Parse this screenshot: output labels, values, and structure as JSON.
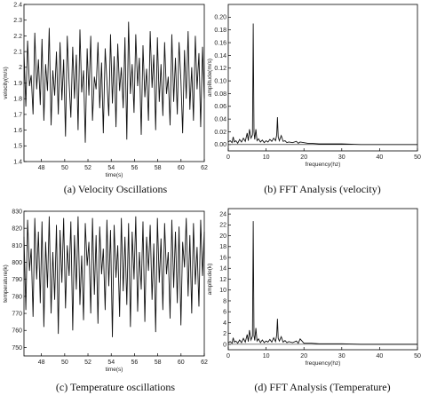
{
  "chart_data": [
    {
      "type": "line",
      "panel": "a",
      "caption": "(a) Velocity Oscillations",
      "xlabel": "time(s)",
      "ylabel": "velocity(m/s)",
      "xlim": [
        46.5,
        62
      ],
      "ylim": [
        1.4,
        2.4
      ],
      "xticks": [
        48,
        50,
        52,
        54,
        56,
        58,
        60,
        62
      ],
      "yticks": [
        1.4,
        1.5,
        1.6,
        1.7,
        1.8,
        1.9,
        2.0,
        2.1,
        2.2,
        2.3,
        2.4
      ],
      "ytick_labels": [
        "1.4",
        "1.5",
        "1.6",
        "1.7",
        "1.8",
        "1.9",
        "2",
        "2.1",
        "2.2",
        "2.3",
        "2.4"
      ],
      "grid": false,
      "series": [
        {
          "x": [
            46.5,
            46.66,
            46.81,
            46.97,
            47.12,
            47.28,
            47.43,
            47.59,
            47.74,
            47.9,
            48.05,
            48.21,
            48.36,
            48.52,
            48.67,
            48.83,
            48.98,
            49.14,
            49.29,
            49.45,
            49.6,
            49.76,
            49.91,
            50.07,
            50.22,
            50.38,
            50.53,
            50.69,
            50.84,
            51.0,
            51.15,
            51.31,
            51.46,
            51.62,
            51.77,
            51.93,
            52.08,
            52.24,
            52.39,
            52.55,
            52.7,
            52.86,
            53.01,
            53.17,
            53.32,
            53.48,
            53.63,
            53.79,
            53.94,
            54.1,
            54.25,
            54.41,
            54.56,
            54.72,
            54.87,
            55.03,
            55.18,
            55.34,
            55.49,
            55.65,
            55.8,
            55.96,
            56.11,
            56.27,
            56.42,
            56.58,
            56.73,
            56.89,
            57.04,
            57.2,
            57.35,
            57.51,
            57.66,
            57.82,
            57.97,
            58.13,
            58.28,
            58.44,
            58.59,
            58.75,
            58.9,
            59.06,
            59.21,
            59.37,
            59.52,
            59.68,
            59.83,
            59.99,
            60.14,
            60.3,
            60.45,
            60.61,
            60.76,
            60.92,
            61.07,
            61.23,
            61.38,
            61.54,
            61.69,
            61.85,
            62.0
          ],
          "y": [
            2.1,
            1.75,
            2.17,
            1.88,
            1.95,
            1.7,
            2.22,
            1.86,
            2.05,
            1.76,
            2.18,
            1.66,
            2.02,
            1.85,
            2.25,
            1.63,
            1.98,
            1.82,
            2.1,
            1.7,
            2.16,
            1.79,
            2.05,
            1.56,
            2.2,
            1.9,
            1.68,
            2.13,
            1.8,
            2.08,
            1.6,
            2.24,
            1.84,
            1.98,
            1.52,
            2.12,
            1.82,
            2.2,
            1.66,
            1.94,
            1.86,
            2.16,
            1.74,
            2.03,
            1.58,
            2.12,
            1.91,
            1.69,
            2.21,
            1.77,
            2.07,
            1.62,
            2.15,
            1.85,
            2.0,
            1.74,
            2.19,
            1.54,
            2.29,
            1.83,
            2.02,
            1.71,
            2.21,
            1.88,
            2.06,
            1.57,
            2.14,
            1.81,
            1.99,
            1.66,
            2.23,
            1.87,
            2.08,
            1.6,
            2.19,
            1.78,
            2.02,
            1.69,
            2.16,
            1.83,
            1.94,
            1.63,
            2.21,
            1.78,
            2.06,
            1.7,
            2.16,
            1.92,
            1.58,
            2.11,
            1.8,
            2.23,
            1.73,
            2.0,
            1.66,
            2.2,
            1.86,
            2.09,
            1.62,
            2.13,
            1.8
          ]
        }
      ]
    },
    {
      "type": "line",
      "panel": "b",
      "caption": "(b) FFT Analysis (velocity)",
      "xlabel": "frequency(hz)",
      "ylabel": "amplitude(m/s)",
      "xlim": [
        0,
        50
      ],
      "ylim": [
        -0.01,
        0.22
      ],
      "xticks": [
        0,
        10,
        20,
        30,
        40,
        50
      ],
      "yticks": [
        0.0,
        0.02,
        0.04,
        0.06,
        0.08,
        0.1,
        0.12,
        0.14,
        0.16,
        0.18,
        0.2
      ],
      "ytick_labels": [
        "0.00",
        "0.02",
        "0.04",
        "0.06",
        "0.08",
        "0.10",
        "0.12",
        "0.14",
        "0.16",
        "0.18",
        "0.20"
      ],
      "grid": false,
      "series": [
        {
          "x": [
            0,
            0.5,
            1,
            1.3,
            1.6,
            2,
            2.5,
            3,
            3.5,
            4,
            4.5,
            5,
            5.3,
            5.6,
            6,
            6.4,
            6.6,
            6.8,
            7,
            7.3,
            7.6,
            8,
            8.5,
            9,
            9.5,
            10,
            10.5,
            11,
            11.5,
            12,
            12.5,
            12.8,
            13,
            13.2,
            13.5,
            14,
            14.5,
            15,
            15.5,
            16,
            17,
            18,
            18.5,
            19,
            20,
            21,
            22,
            24,
            26,
            28,
            30,
            35,
            40,
            45,
            50
          ],
          "y": [
            0.004,
            0.006,
            0.003,
            0.012,
            0.004,
            0.006,
            0.002,
            0.008,
            0.004,
            0.01,
            0.005,
            0.018,
            0.006,
            0.024,
            0.01,
            0.015,
            0.19,
            0.02,
            0.008,
            0.024,
            0.006,
            0.009,
            0.004,
            0.007,
            0.003,
            0.006,
            0.004,
            0.008,
            0.005,
            0.01,
            0.006,
            0.015,
            0.043,
            0.012,
            0.006,
            0.014,
            0.005,
            0.006,
            0.003,
            0.004,
            0.003,
            0.005,
            0.002,
            0.004,
            0.003,
            0.002,
            0.002,
            0.001,
            0.001,
            0.001,
            0.001,
            0.0,
            0.0,
            0.0,
            0.0
          ]
        }
      ]
    },
    {
      "type": "line",
      "panel": "c",
      "caption": "(c) Temperature oscillations",
      "xlabel": "time(s)",
      "ylabel": "temperature(k)",
      "xlim": [
        46.5,
        62
      ],
      "ylim": [
        745,
        830
      ],
      "xticks": [
        48,
        50,
        52,
        54,
        56,
        58,
        60,
        62
      ],
      "yticks": [
        750,
        760,
        770,
        780,
        790,
        800,
        810,
        820,
        830
      ],
      "ytick_labels": [
        "750",
        "760",
        "770",
        "780",
        "790",
        "800",
        "810",
        "820",
        "830"
      ],
      "grid": false,
      "series": [
        {
          "x": [
            46.5,
            46.66,
            46.81,
            46.97,
            47.12,
            47.28,
            47.43,
            47.59,
            47.74,
            47.9,
            48.05,
            48.21,
            48.36,
            48.52,
            48.67,
            48.83,
            48.98,
            49.14,
            49.29,
            49.45,
            49.6,
            49.76,
            49.91,
            50.07,
            50.22,
            50.38,
            50.53,
            50.69,
            50.84,
            51.0,
            51.15,
            51.31,
            51.46,
            51.62,
            51.77,
            51.93,
            52.08,
            52.24,
            52.39,
            52.55,
            52.7,
            52.86,
            53.01,
            53.17,
            53.32,
            53.48,
            53.63,
            53.79,
            53.94,
            54.1,
            54.25,
            54.41,
            54.56,
            54.72,
            54.87,
            55.03,
            55.18,
            55.34,
            55.49,
            55.65,
            55.8,
            55.96,
            56.11,
            56.27,
            56.42,
            56.58,
            56.73,
            56.89,
            57.04,
            57.2,
            57.35,
            57.51,
            57.66,
            57.82,
            57.97,
            58.13,
            58.28,
            58.44,
            58.59,
            58.75,
            58.9,
            59.06,
            59.21,
            59.37,
            59.52,
            59.68,
            59.83,
            59.99,
            60.14,
            60.3,
            60.45,
            60.61,
            60.76,
            60.92,
            61.07,
            61.23,
            61.38,
            61.54,
            61.69,
            61.85,
            62.0
          ],
          "y": [
            815,
            772,
            825,
            795,
            808,
            768,
            826,
            790,
            818,
            776,
            824,
            762,
            812,
            785,
            827,
            770,
            806,
            778,
            822,
            758,
            819,
            788,
            826,
            773,
            810,
            792,
            824,
            760,
            816,
            784,
            827,
            775,
            804,
            766,
            823,
            798,
            812,
            770,
            826,
            781,
            816,
            764,
            821,
            793,
            808,
            772,
            825,
            786,
            819,
            756,
            822,
            791,
            810,
            768,
            826,
            783,
            815,
            775,
            823,
            762,
            818,
            790,
            827,
            771,
            806,
            784,
            824,
            765,
            815,
            795,
            822,
            778,
            811,
            759,
            826,
            788,
            814,
            772,
            823,
            793,
            806,
            767,
            825,
            785,
            818,
            776,
            821,
            763,
            812,
            797,
            826,
            780,
            816,
            770,
            823,
            787,
            809,
            774,
            825,
            792,
            818
          ]
        }
      ]
    },
    {
      "type": "line",
      "panel": "d",
      "caption": "(d) FFT Analysis (Temperature)",
      "xlabel": "frequency(hz)",
      "ylabel": "amplitude(k)",
      "xlim": [
        0,
        50
      ],
      "ylim": [
        -1,
        25
      ],
      "xticks": [
        0,
        10,
        20,
        30,
        40,
        50
      ],
      "yticks": [
        0,
        2,
        4,
        6,
        8,
        10,
        12,
        14,
        16,
        18,
        20,
        22,
        24
      ],
      "ytick_labels": [
        "0",
        "2",
        "4",
        "6",
        "8",
        "10",
        "12",
        "14",
        "16",
        "18",
        "20",
        "22",
        "24"
      ],
      "grid": false,
      "series": [
        {
          "x": [
            0,
            0.5,
            1,
            1.3,
            1.6,
            2,
            2.5,
            3,
            3.5,
            4,
            4.5,
            5,
            5.3,
            5.6,
            6,
            6.4,
            6.6,
            6.8,
            7,
            7.3,
            7.6,
            8,
            8.5,
            9,
            9.5,
            10,
            10.5,
            11,
            11.5,
            12,
            12.5,
            12.8,
            13,
            13.2,
            13.5,
            14,
            14.5,
            15,
            15.5,
            16,
            17,
            18,
            18.5,
            19,
            20,
            21,
            22,
            24,
            26,
            28,
            30,
            35,
            40,
            45,
            50
          ],
          "y": [
            0.3,
            0.5,
            0.2,
            1.2,
            0.4,
            0.6,
            0.2,
            0.8,
            0.3,
            1.1,
            0.4,
            1.8,
            0.5,
            2.6,
            0.8,
            1.5,
            22.7,
            1.6,
            0.7,
            3.0,
            0.6,
            1.0,
            0.3,
            0.8,
            0.3,
            0.6,
            0.4,
            0.9,
            0.4,
            1.2,
            0.5,
            1.7,
            4.7,
            1.1,
            0.6,
            1.4,
            0.4,
            0.7,
            0.3,
            0.5,
            0.3,
            0.6,
            0.2,
            1.0,
            0.2,
            0.2,
            0.2,
            0.1,
            0.1,
            0.1,
            0.1,
            0.0,
            0.0,
            0.0,
            0.0
          ]
        }
      ]
    }
  ]
}
